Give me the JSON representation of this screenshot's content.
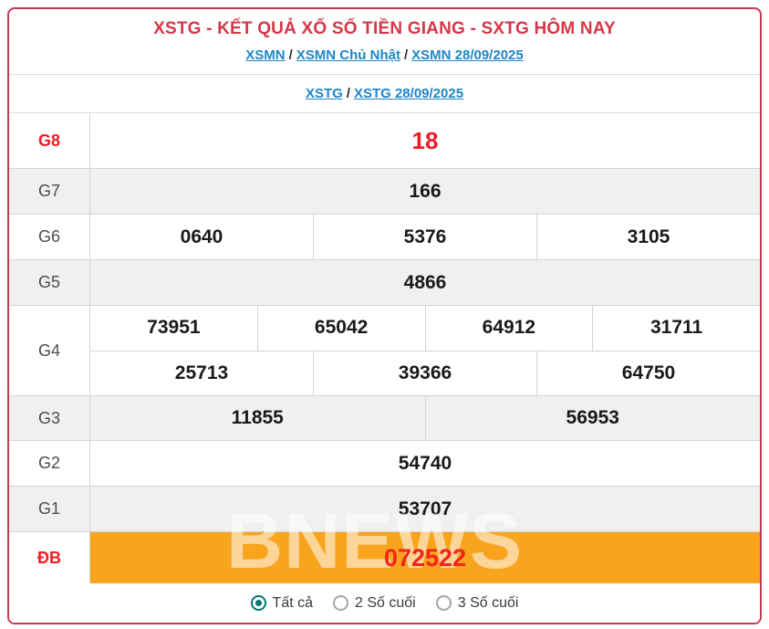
{
  "header": {
    "title": "XSTG - KẾT QUẢ XỔ SỐ TIỀN GIANG - SXTG HÔM NAY",
    "separator": "/",
    "breadcrumb1": {
      "links": [
        "XSMN",
        "XSMN Chủ Nhật",
        "XSMN 28/09/2025"
      ]
    },
    "breadcrumb2": {
      "links": [
        "XSTG",
        "XSTG 28/09/2025"
      ]
    }
  },
  "table": {
    "rows": [
      {
        "label": "G8",
        "cells": [
          "18"
        ]
      },
      {
        "label": "G7",
        "cells": [
          "166"
        ]
      },
      {
        "label": "G6",
        "cells": [
          "0640",
          "5376",
          "3105"
        ]
      },
      {
        "label": "G5",
        "cells": [
          "4866"
        ]
      },
      {
        "label": "G4",
        "line1": [
          "73951",
          "65042",
          "64912",
          "31711"
        ],
        "line2": [
          "25713",
          "39366",
          "64750"
        ]
      },
      {
        "label": "G3",
        "cells": [
          "11855",
          "56953"
        ]
      },
      {
        "label": "G2",
        "cells": [
          "54740"
        ]
      },
      {
        "label": "G1",
        "cells": [
          "53707"
        ]
      },
      {
        "label": "ĐB",
        "cells": [
          "072522"
        ]
      }
    ]
  },
  "watermark": "BNEWS",
  "footer": {
    "options": [
      {
        "label": "Tất cả",
        "selected": true
      },
      {
        "label": "2 Số cuối",
        "selected": false
      },
      {
        "label": "3 Số cuối",
        "selected": false
      }
    ]
  },
  "colors": {
    "title_red": "#d63748",
    "value_red": "#ee1c24",
    "border_red": "#c53b50",
    "link_blue": "#1d87c8",
    "orange": "#f8a41d",
    "row_gray": "#f0f0f0",
    "radio_teal": "#00796e"
  }
}
